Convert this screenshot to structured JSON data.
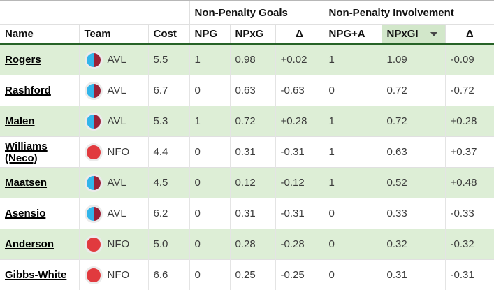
{
  "colors": {
    "row_band_green": "#ddeed6",
    "sorted_header_bg": "#d2e7ca",
    "header_bottom_border": "#276327",
    "grid_line": "#e0e0e0",
    "text": "#3c3c3c",
    "link_text": "#000000"
  },
  "teams": {
    "AVL": {
      "style": "split",
      "left_color": "#31b5ea",
      "right_color": "#9b2137",
      "label": "AVL"
    },
    "NFO": {
      "style": "solid",
      "fill_color": "#e13a3e",
      "label": "NFO"
    }
  },
  "table": {
    "group_headers": [
      {
        "label": "",
        "span": 3
      },
      {
        "label": "Non-Penalty Goals",
        "span": 3
      },
      {
        "label": "Non-Penalty Involvement",
        "span": 3
      }
    ],
    "columns": [
      {
        "key": "name",
        "label": "Name"
      },
      {
        "key": "team",
        "label": "Team"
      },
      {
        "key": "cost",
        "label": "Cost"
      },
      {
        "key": "npg",
        "label": "NPG"
      },
      {
        "key": "npxg",
        "label": "NPxG"
      },
      {
        "key": "delta_goals",
        "label": "Δ"
      },
      {
        "key": "npga",
        "label": "NPG+A"
      },
      {
        "key": "npxgi",
        "label": "NPxGI",
        "sorted": "desc"
      },
      {
        "key": "delta_inv",
        "label": "Δ"
      }
    ],
    "rows": [
      {
        "name": "Rogers",
        "team": "AVL",
        "cost": "5.5",
        "npg": "1",
        "npxg": "0.98",
        "delta_goals": "+0.02",
        "npga": "1",
        "npxgi": "1.09",
        "delta_inv": "-0.09"
      },
      {
        "name": "Rashford",
        "team": "AVL",
        "cost": "6.7",
        "npg": "0",
        "npxg": "0.63",
        "delta_goals": "-0.63",
        "npga": "0",
        "npxgi": "0.72",
        "delta_inv": "-0.72"
      },
      {
        "name": "Malen",
        "team": "AVL",
        "cost": "5.3",
        "npg": "1",
        "npxg": "0.72",
        "delta_goals": "+0.28",
        "npga": "1",
        "npxgi": "0.72",
        "delta_inv": "+0.28"
      },
      {
        "name": "Williams (Neco)",
        "team": "NFO",
        "cost": "4.4",
        "npg": "0",
        "npxg": "0.31",
        "delta_goals": "-0.31",
        "npga": "1",
        "npxgi": "0.63",
        "delta_inv": "+0.37"
      },
      {
        "name": "Maatsen",
        "team": "AVL",
        "cost": "4.5",
        "npg": "0",
        "npxg": "0.12",
        "delta_goals": "-0.12",
        "npga": "1",
        "npxgi": "0.52",
        "delta_inv": "+0.48"
      },
      {
        "name": "Asensio",
        "team": "AVL",
        "cost": "6.2",
        "npg": "0",
        "npxg": "0.31",
        "delta_goals": "-0.31",
        "npga": "0",
        "npxgi": "0.33",
        "delta_inv": "-0.33"
      },
      {
        "name": "Anderson",
        "team": "NFO",
        "cost": "5.0",
        "npg": "0",
        "npxg": "0.28",
        "delta_goals": "-0.28",
        "npga": "0",
        "npxgi": "0.32",
        "delta_inv": "-0.32"
      },
      {
        "name": "Gibbs-White",
        "team": "NFO",
        "cost": "6.6",
        "npg": "0",
        "npxg": "0.25",
        "delta_goals": "-0.25",
        "npga": "0",
        "npxgi": "0.31",
        "delta_inv": "-0.31"
      }
    ]
  }
}
